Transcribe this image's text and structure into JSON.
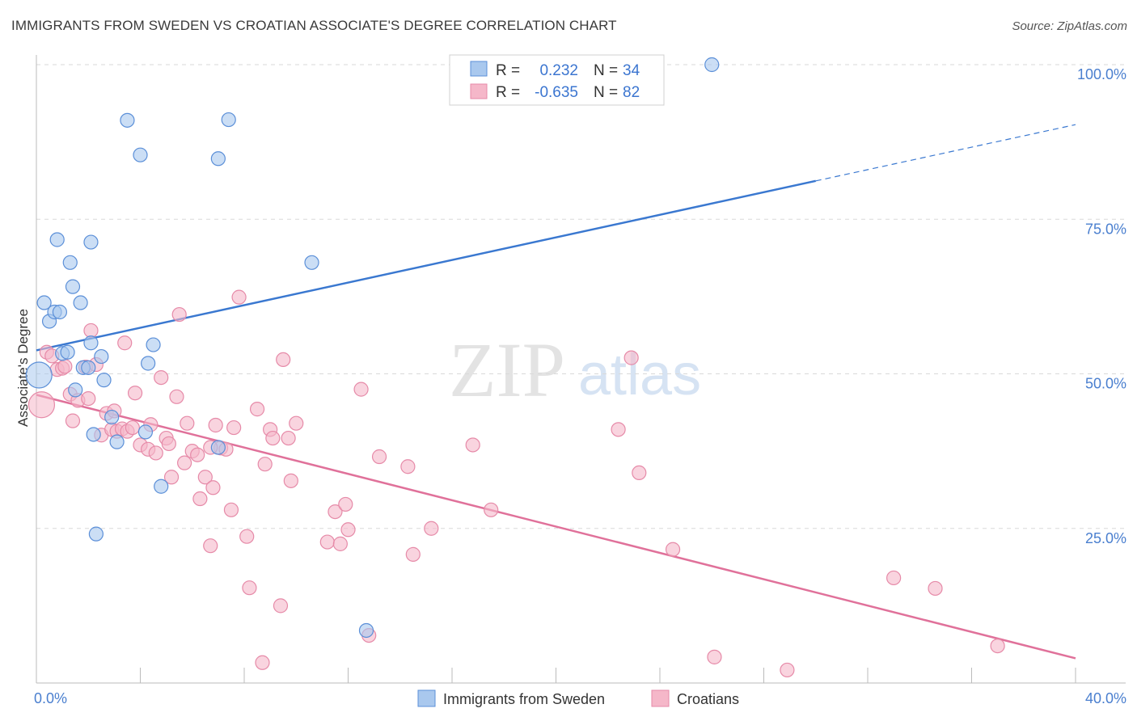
{
  "title": "IMMIGRANTS FROM SWEDEN VS CROATIAN ASSOCIATE'S DEGREE CORRELATION CHART",
  "source": "Source: ZipAtlas.com",
  "watermark": {
    "zip": "ZIP",
    "atlas": "atlas"
  },
  "colors": {
    "blue_fill": "#a9c8ee",
    "blue_stroke": "#5b8fd8",
    "blue_line": "#3a78d0",
    "pink_fill": "#f5b7c9",
    "pink_stroke": "#e68aa8",
    "pink_line": "#e0719a",
    "tick": "#4a7fcf",
    "grid": "#d9d9d9"
  },
  "legend": {
    "rows": [
      {
        "r_label": "R =",
        "r_value": "0.232",
        "n_label": "N =",
        "n_value": "34",
        "color": "#a9c8ee"
      },
      {
        "r_label": "R =",
        "r_value": "-0.635",
        "n_label": "N =",
        "n_value": "82",
        "color": "#f5b7c9"
      }
    ]
  },
  "bottom_legend": [
    "Immigrants from Sweden",
    "Croatians"
  ],
  "chart_data": {
    "type": "scatter",
    "xlabel": "",
    "ylabel": "Associate's Degree",
    "xlim": [
      0,
      40
    ],
    "ylim": [
      0,
      100
    ],
    "x_tick_labels": [
      "0.0%",
      "40.0%"
    ],
    "y_ticks": [
      25,
      50,
      75,
      100
    ],
    "y_tick_labels": [
      "25.0%",
      "50.0%",
      "75.0%",
      "100.0%"
    ],
    "grid": "horizontal dashed",
    "legend_placement": "top-center",
    "series": [
      {
        "name": "Immigrants from Sweden",
        "color": "#a9c8ee",
        "points": [
          [
            0.1,
            49.8
          ],
          [
            0.3,
            61.5
          ],
          [
            0.5,
            58.5
          ],
          [
            0.7,
            60.0
          ],
          [
            0.8,
            71.7
          ],
          [
            0.9,
            60.0
          ],
          [
            1.0,
            53.3
          ],
          [
            1.2,
            53.5
          ],
          [
            1.3,
            68.0
          ],
          [
            1.4,
            64.1
          ],
          [
            1.5,
            47.4
          ],
          [
            1.7,
            61.5
          ],
          [
            1.8,
            51.0
          ],
          [
            2.1,
            55.0
          ],
          [
            2.1,
            71.3
          ],
          [
            2.2,
            40.2
          ],
          [
            2.3,
            24.1
          ],
          [
            2.5,
            52.8
          ],
          [
            2.6,
            49.0
          ],
          [
            2.9,
            43.0
          ],
          [
            3.1,
            39.0
          ],
          [
            3.5,
            91.0
          ],
          [
            4.0,
            85.4
          ],
          [
            4.2,
            40.6
          ],
          [
            4.3,
            51.7
          ],
          [
            4.5,
            54.7
          ],
          [
            4.8,
            31.8
          ],
          [
            7.0,
            84.8
          ],
          [
            7.0,
            38.1
          ],
          [
            7.4,
            91.1
          ],
          [
            10.6,
            68.0
          ],
          [
            12.7,
            8.5
          ],
          [
            26.0,
            100.0
          ],
          [
            2.0,
            51.0
          ]
        ]
      },
      {
        "name": "Croatians",
        "color": "#f5b7c9",
        "points": [
          [
            0.2,
            45.0
          ],
          [
            0.4,
            53.5
          ],
          [
            0.6,
            52.9
          ],
          [
            0.8,
            50.7
          ],
          [
            1.0,
            50.9
          ],
          [
            1.1,
            51.2
          ],
          [
            1.3,
            46.7
          ],
          [
            1.4,
            42.4
          ],
          [
            1.6,
            45.7
          ],
          [
            1.9,
            51.1
          ],
          [
            2.0,
            46.0
          ],
          [
            2.1,
            57.0
          ],
          [
            2.3,
            51.5
          ],
          [
            2.5,
            40.1
          ],
          [
            2.7,
            43.6
          ],
          [
            2.9,
            41.0
          ],
          [
            3.0,
            44.0
          ],
          [
            3.1,
            40.7
          ],
          [
            3.3,
            41.1
          ],
          [
            3.4,
            55.0
          ],
          [
            3.5,
            40.7
          ],
          [
            3.7,
            41.3
          ],
          [
            3.8,
            46.9
          ],
          [
            4.0,
            38.5
          ],
          [
            4.3,
            37.8
          ],
          [
            4.4,
            41.8
          ],
          [
            4.6,
            37.2
          ],
          [
            4.8,
            49.4
          ],
          [
            5.0,
            39.6
          ],
          [
            5.1,
            38.7
          ],
          [
            5.2,
            33.3
          ],
          [
            5.4,
            46.3
          ],
          [
            5.5,
            59.6
          ],
          [
            5.7,
            35.6
          ],
          [
            5.8,
            42.0
          ],
          [
            6.0,
            37.5
          ],
          [
            6.2,
            36.9
          ],
          [
            6.3,
            29.8
          ],
          [
            6.5,
            33.3
          ],
          [
            6.7,
            22.2
          ],
          [
            6.8,
            31.6
          ],
          [
            6.9,
            41.7
          ],
          [
            7.1,
            38.0
          ],
          [
            7.3,
            37.8
          ],
          [
            7.5,
            28.0
          ],
          [
            7.6,
            41.3
          ],
          [
            7.8,
            62.4
          ],
          [
            8.1,
            23.7
          ],
          [
            8.2,
            15.4
          ],
          [
            8.5,
            44.3
          ],
          [
            8.7,
            3.3
          ],
          [
            8.8,
            35.4
          ],
          [
            9.0,
            41.0
          ],
          [
            9.1,
            39.6
          ],
          [
            9.4,
            12.5
          ],
          [
            9.5,
            52.3
          ],
          [
            9.7,
            39.6
          ],
          [
            9.8,
            32.7
          ],
          [
            10.0,
            42.0
          ],
          [
            11.2,
            22.8
          ],
          [
            11.5,
            27.7
          ],
          [
            11.7,
            22.5
          ],
          [
            11.9,
            28.9
          ],
          [
            12.0,
            24.8
          ],
          [
            12.5,
            47.5
          ],
          [
            12.8,
            7.7
          ],
          [
            13.2,
            36.6
          ],
          [
            14.3,
            35.0
          ],
          [
            14.5,
            20.8
          ],
          [
            15.2,
            25.0
          ],
          [
            16.8,
            38.5
          ],
          [
            17.5,
            28.0
          ],
          [
            22.4,
            41.0
          ],
          [
            22.9,
            52.6
          ],
          [
            23.2,
            34.0
          ],
          [
            24.5,
            21.6
          ],
          [
            26.1,
            4.2
          ],
          [
            28.9,
            2.1
          ],
          [
            33.0,
            17.0
          ],
          [
            34.6,
            15.3
          ],
          [
            37.0,
            6.0
          ],
          [
            6.7,
            38.1
          ]
        ]
      }
    ],
    "trend_lines": [
      {
        "series": "Immigrants from Sweden",
        "from": [
          0,
          53.8
        ],
        "to": [
          30,
          81.2
        ],
        "dashed_to": [
          40,
          90.3
        ]
      },
      {
        "series": "Croatians",
        "from": [
          0,
          46.6
        ],
        "to": [
          40,
          4.0
        ]
      }
    ]
  }
}
